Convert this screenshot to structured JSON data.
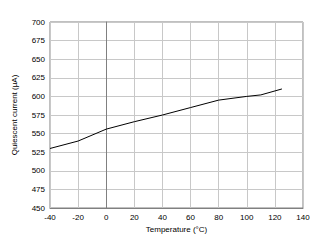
{
  "chart_data": {
    "type": "line",
    "x_label": "Temperature (°C)",
    "y_label": "Quiescent current (µA)",
    "x": [
      -40,
      -20,
      0,
      20,
      40,
      60,
      80,
      100,
      110,
      125
    ],
    "values": [
      530,
      540,
      556,
      566,
      575,
      585,
      595,
      600,
      602,
      610
    ],
    "color": "#000000",
    "xlim": [
      -40,
      140
    ],
    "xticks": [
      -40,
      -20,
      0,
      20,
      40,
      60,
      80,
      100,
      120,
      140
    ],
    "ylim": [
      450,
      700
    ],
    "yticks": [
      450,
      475,
      500,
      525,
      550,
      575,
      600,
      625,
      650,
      675,
      700
    ],
    "grid": true
  }
}
